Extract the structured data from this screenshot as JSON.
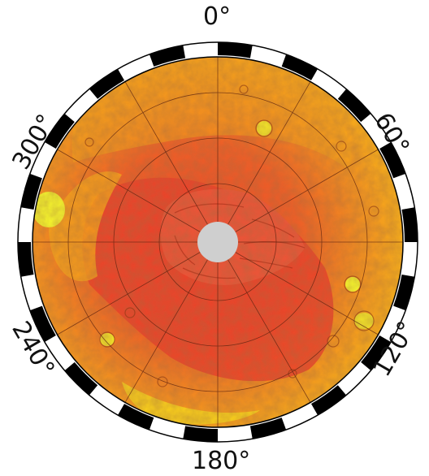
{
  "map": {
    "projection": "polar stereographic",
    "colors": {
      "pole_cap": "#cfcfcf",
      "low_terrain": "#e8442a",
      "mid_terrain": "#f07a24",
      "high_terrain": "#f6b31c",
      "peak_terrain": "#f3ee2e",
      "frame_black": "#000000",
      "frame_white": "#ffffff",
      "graticule": "#6b2a10"
    },
    "longitude_labels": {
      "lon_0": "0°",
      "lon_60": "60°",
      "lon_120": "120°",
      "lon_180": "180°",
      "lon_240": "240°",
      "lon_300": "300°"
    }
  }
}
